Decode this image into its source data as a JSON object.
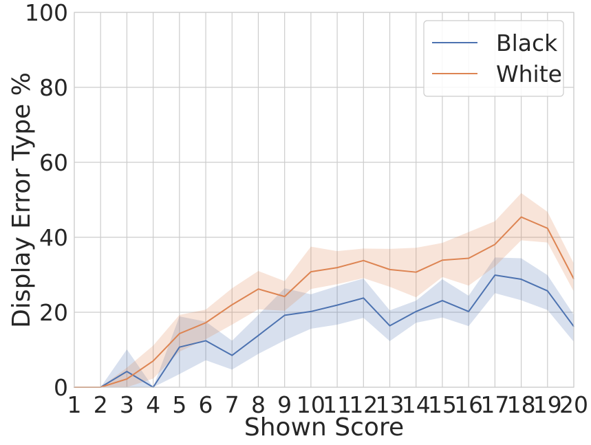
{
  "chart_data": {
    "type": "line",
    "xlabel": "Shown Score",
    "ylabel": "Display Error Type %",
    "x": [
      1,
      2,
      3,
      4,
      5,
      6,
      7,
      8,
      9,
      10,
      11,
      12,
      13,
      14,
      15,
      16,
      17,
      18,
      19,
      20
    ],
    "xlim": [
      1,
      20
    ],
    "ylim": [
      0,
      100
    ],
    "yticks": [
      0,
      20,
      40,
      60,
      80,
      100
    ],
    "grid": true,
    "legend_position": "top-right",
    "series": [
      {
        "name": "Black",
        "color": "#4c72b0",
        "values": [
          0,
          0,
          4.2,
          0,
          10.7,
          12.4,
          8.5,
          13.8,
          19.2,
          20.2,
          21.9,
          23.8,
          16.4,
          20.2,
          23.1,
          20.2,
          29.9,
          28.8,
          25.7,
          16.2
        ],
        "ci_lower": [
          0,
          0,
          0,
          0,
          3.5,
          7.2,
          4.7,
          8.9,
          12.5,
          15.6,
          16.7,
          18.5,
          12.3,
          17.2,
          18.6,
          16.3,
          25.1,
          23.2,
          20.6,
          12.1
        ],
        "ci_upper": [
          0,
          0,
          10.1,
          0,
          18.9,
          17.5,
          12.4,
          19.3,
          26.4,
          24.8,
          27.0,
          29.0,
          20.5,
          23.1,
          28.8,
          24.4,
          34.6,
          34.4,
          29.9,
          19.3
        ]
      },
      {
        "name": "White",
        "color": "#dd8452",
        "values": [
          0,
          0,
          2.2,
          7.0,
          14.3,
          17.2,
          22.0,
          26.2,
          24.2,
          30.8,
          31.9,
          33.8,
          31.4,
          30.7,
          33.9,
          34.4,
          38.1,
          45.4,
          42.4,
          28.9
        ],
        "ci_lower": [
          0,
          0,
          0,
          2.3,
          9.5,
          12.8,
          16.7,
          20.8,
          20.4,
          26.2,
          27.5,
          29.1,
          26.8,
          24.0,
          29.4,
          27.1,
          32.2,
          39.2,
          38.6,
          25.5
        ],
        "ci_upper": [
          0,
          0,
          5.2,
          11.1,
          19.3,
          20.7,
          26.4,
          31.0,
          28.3,
          37.5,
          36.3,
          37.0,
          36.9,
          37.2,
          38.5,
          41.4,
          44.3,
          51.8,
          46.8,
          33.0
        ]
      }
    ]
  }
}
